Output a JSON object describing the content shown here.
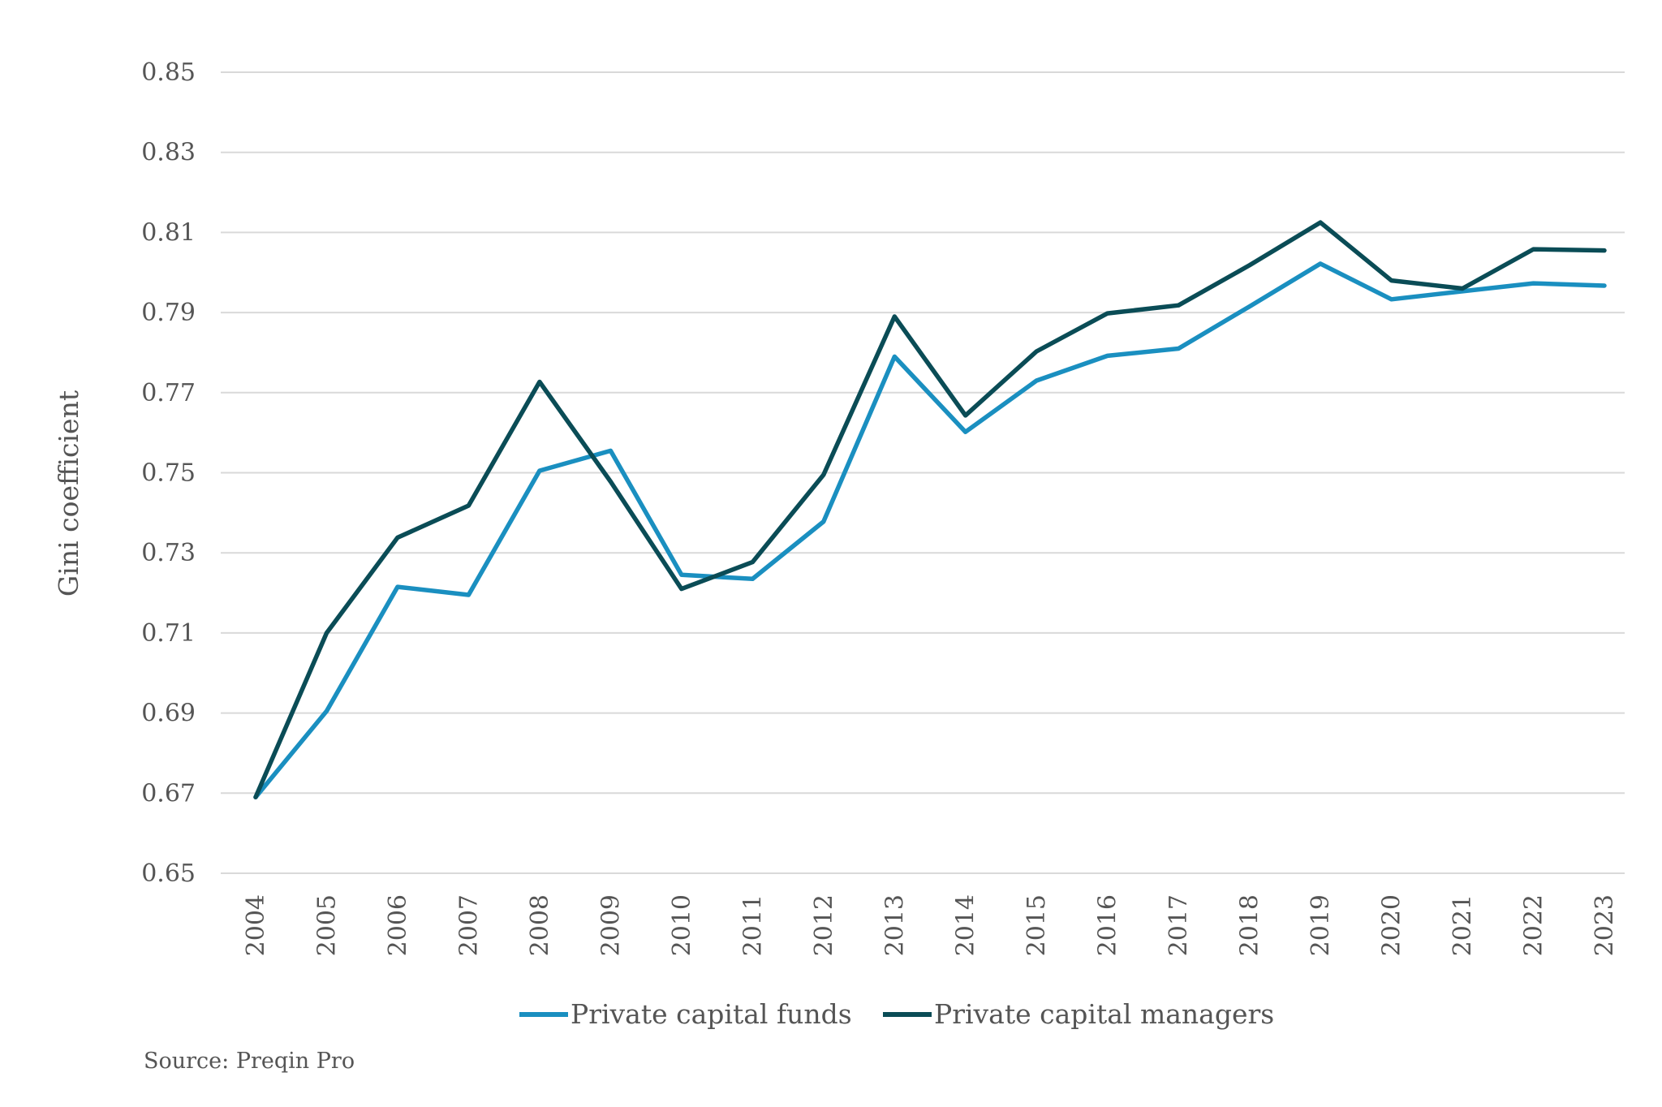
{
  "chart_data": {
    "type": "line",
    "title": "",
    "xlabel": "",
    "ylabel": "Gini coefficient",
    "ylim": [
      0.65,
      0.85
    ],
    "yticks": [
      "0.65",
      "0.67",
      "0.69",
      "0.71",
      "0.73",
      "0.75",
      "0.77",
      "0.79",
      "0.81",
      "0.83",
      "0.85"
    ],
    "grid": true,
    "legend_position": "bottom",
    "categories": [
      "2004",
      "2005",
      "2006",
      "2007",
      "2008",
      "2009",
      "2010",
      "2011",
      "2012",
      "2013",
      "2014",
      "2015",
      "2016",
      "2017",
      "2018",
      "2019",
      "2020",
      "2021",
      "2022",
      "2023"
    ],
    "series": [
      {
        "name": "Private capital funds",
        "color": "#1a8fc0",
        "values": [
          0.669,
          0.6905,
          0.7215,
          0.7195,
          0.7505,
          0.7555,
          0.7245,
          0.7235,
          0.7378,
          0.779,
          0.7602,
          0.773,
          0.7792,
          0.781,
          0.7915,
          0.8022,
          0.7933,
          0.7953,
          0.7973,
          0.7967
        ]
      },
      {
        "name": "Private capital managers",
        "color": "#0a4c56",
        "values": [
          0.669,
          0.71,
          0.7338,
          0.7418,
          0.7727,
          0.7478,
          0.721,
          0.7277,
          0.7495,
          0.789,
          0.7643,
          0.7803,
          0.7898,
          0.7918,
          0.8018,
          0.8125,
          0.798,
          0.796,
          0.8058,
          0.8055
        ]
      }
    ],
    "source": "Source: Preqin Pro"
  }
}
